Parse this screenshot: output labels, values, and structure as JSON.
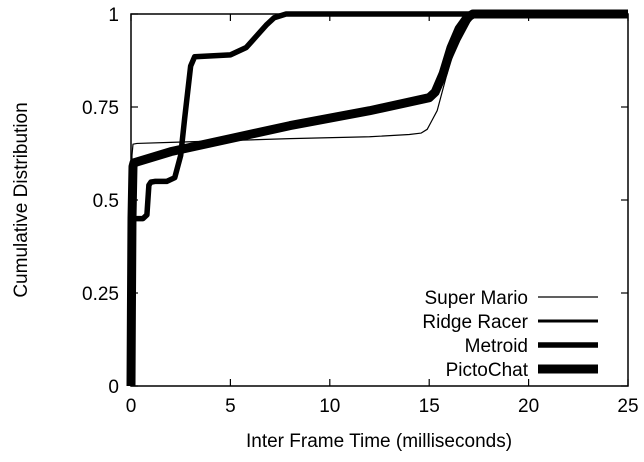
{
  "chart_data": {
    "type": "line",
    "title": "",
    "xlabel": "Inter Frame Time (milliseconds)",
    "ylabel": "Cumulative Distribution",
    "xlim": [
      0,
      25
    ],
    "ylim": [
      0,
      1
    ],
    "xticks": [
      0,
      5,
      10,
      15,
      20,
      25
    ],
    "xtick_labels": [
      "0",
      "5",
      "10",
      "15",
      "20",
      "25"
    ],
    "yticks": [
      0,
      0.25,
      0.5,
      0.75,
      1
    ],
    "ytick_labels": [
      "0",
      "0.25",
      "0.5",
      "0.75",
      "1"
    ],
    "grid": false,
    "legend_position": "bottom-right",
    "series": [
      {
        "name": "Super Mario",
        "x": [
          0,
          0.02,
          0.05,
          0.1,
          0.3,
          2,
          5,
          8,
          12,
          14,
          14.6,
          14.9,
          15.1,
          15.4,
          15.8,
          16.3,
          16.8,
          17.2,
          17.6,
          20,
          25
        ],
        "y": [
          0,
          0.3,
          0.62,
          0.65,
          0.652,
          0.655,
          0.66,
          0.665,
          0.67,
          0.676,
          0.68,
          0.69,
          0.71,
          0.74,
          0.82,
          0.92,
          0.97,
          0.99,
          1,
          1,
          1
        ]
      },
      {
        "name": "Ridge Racer",
        "x": [
          0,
          0.02,
          0.05,
          0.1,
          0.3,
          2,
          5,
          8,
          12,
          15,
          15.5,
          16,
          16.5,
          17,
          17.3,
          25
        ],
        "y": [
          0,
          0.3,
          0.55,
          0.6,
          0.605,
          0.63,
          0.665,
          0.7,
          0.74,
          0.775,
          0.8,
          0.87,
          0.93,
          0.98,
          1,
          1
        ]
      },
      {
        "name": "Metroid",
        "x": [
          0,
          0.03,
          0.06,
          0.1,
          0.15,
          0.6,
          0.8,
          0.9,
          1.0,
          1.2,
          1.8,
          2.2,
          2.5,
          2.7,
          3.0,
          3.2,
          5,
          5.8,
          6.3,
          6.8,
          7.2,
          7.8,
          25
        ],
        "y": [
          0,
          0.2,
          0.4,
          0.45,
          0.45,
          0.45,
          0.46,
          0.54,
          0.548,
          0.55,
          0.55,
          0.56,
          0.62,
          0.72,
          0.86,
          0.885,
          0.89,
          0.91,
          0.94,
          0.97,
          0.99,
          1,
          1
        ]
      },
      {
        "name": "PictoChat",
        "x": [
          0,
          0.02,
          0.05,
          0.1,
          0.15,
          2,
          5,
          8,
          12,
          15,
          15.3,
          15.7,
          16.1,
          16.5,
          16.9,
          17.2,
          25
        ],
        "y": [
          0,
          0.2,
          0.45,
          0.59,
          0.6,
          0.63,
          0.665,
          0.7,
          0.74,
          0.775,
          0.79,
          0.84,
          0.91,
          0.96,
          0.99,
          1,
          1
        ]
      }
    ]
  },
  "styles": {
    "series_stroke_widths": [
      1.2,
      3,
      5.5,
      9
    ],
    "series_colors": [
      "#000000",
      "#000000",
      "#000000",
      "#000000"
    ]
  }
}
